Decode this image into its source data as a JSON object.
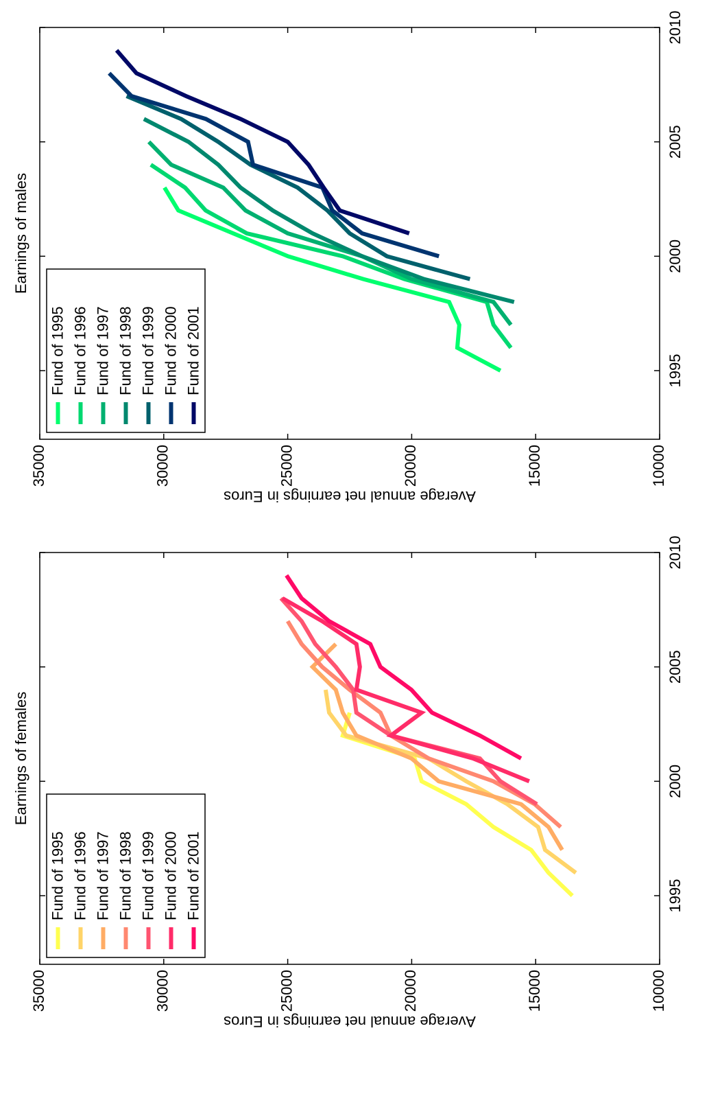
{
  "chart_data": [
    {
      "type": "line",
      "title": "Earnings of males",
      "y_label": "Average annual net earnings in Euros",
      "x": [
        1995,
        1996,
        1997,
        1998,
        1999,
        2000,
        2001,
        2002,
        2003,
        2004,
        2005,
        2006,
        2007,
        2008,
        2009
      ],
      "xlim": [
        1992,
        2010
      ],
      "xticks": [
        1995,
        2000,
        2005,
        2010
      ],
      "ylim": [
        10000,
        35000
      ],
      "yticks": [
        10000,
        15000,
        20000,
        25000,
        30000,
        35000
      ],
      "grid": false,
      "legend": "upper left",
      "series": [
        {
          "name": "Fund of 1995",
          "color": "#00ff6e",
          "values": [
            16420,
            18160,
            18080,
            18490,
            21950,
            24990,
            27200,
            29410,
            29970,
            null,
            null,
            null,
            null,
            null,
            null
          ]
        },
        {
          "name": "Fund of 1996",
          "color": "#00d870",
          "values": [
            null,
            16000,
            16700,
            16970,
            20290,
            22780,
            26650,
            28310,
            29140,
            30520,
            null,
            null,
            null,
            null,
            null
          ]
        },
        {
          "name": "Fund of 1997",
          "color": "#00b070",
          "values": [
            null,
            null,
            16000,
            16700,
            20000,
            22000,
            25000,
            26700,
            27600,
            29700,
            30600,
            null,
            null,
            null,
            null
          ]
        },
        {
          "name": "Fund of 1998",
          "color": "#00886e",
          "values": [
            null,
            null,
            null,
            15870,
            19500,
            22000,
            24000,
            25600,
            26900,
            27800,
            29000,
            30800,
            null,
            null,
            null
          ]
        },
        {
          "name": "Fund of 1999",
          "color": "#00606c",
          "values": [
            null,
            null,
            null,
            null,
            17650,
            21000,
            22500,
            23400,
            24600,
            26500,
            27800,
            29300,
            31500,
            null,
            null
          ]
        },
        {
          "name": "Fund of 2000",
          "color": "#003470",
          "values": [
            null,
            null,
            null,
            null,
            null,
            18900,
            22000,
            23200,
            23600,
            26400,
            26600,
            28300,
            31300,
            32200,
            null
          ]
        },
        {
          "name": "Fund of 2001",
          "color": "#000866",
          "values": [
            null,
            null,
            null,
            null,
            null,
            null,
            20100,
            22900,
            23550,
            24160,
            25000,
            26900,
            29100,
            31100,
            31900
          ]
        }
      ]
    },
    {
      "type": "line",
      "title": "Earnings of females",
      "y_label": "Average annual net earnings in Euros",
      "x": [
        1995,
        1996,
        1997,
        1998,
        1999,
        2000,
        2001,
        2002,
        2003,
        2004,
        2005,
        2006,
        2007,
        2008,
        2009
      ],
      "xlim": [
        1992,
        2010
      ],
      "xticks": [
        1995,
        2000,
        2005,
        2010
      ],
      "ylim": [
        10000,
        35000
      ],
      "yticks": [
        10000,
        15000,
        20000,
        25000,
        30000,
        35000
      ],
      "grid": false,
      "legend": "upper left",
      "series": [
        {
          "name": "Fund of 1995",
          "color": "#ffff50",
          "values": [
            13520,
            14480,
            15180,
            16700,
            17800,
            19600,
            19880,
            22780,
            22500,
            null,
            null,
            null,
            null,
            null,
            null
          ]
        },
        {
          "name": "Fund of 1996",
          "color": "#ffd468",
          "values": [
            null,
            13380,
            14620,
            14900,
            16140,
            17800,
            19320,
            22640,
            23330,
            23470,
            null,
            null,
            null,
            null,
            null
          ]
        },
        {
          "name": "Fund of 1997",
          "color": "#ffac64",
          "values": [
            null,
            null,
            13930,
            14480,
            15590,
            18910,
            20010,
            22230,
            22780,
            23060,
            24000,
            23060,
            null,
            null,
            null
          ]
        },
        {
          "name": "Fund of 1998",
          "color": "#ff8870",
          "values": [
            null,
            null,
            null,
            13990,
            15040,
            16700,
            19320,
            20840,
            21260,
            22500,
            23610,
            24440,
            25000,
            null,
            null
          ]
        },
        {
          "name": "Fund of 1999",
          "color": "#ff5470",
          "values": [
            null,
            null,
            null,
            null,
            14950,
            16420,
            17250,
            20840,
            22230,
            22360,
            23060,
            23890,
            24440,
            25270,
            null
          ]
        },
        {
          "name": "Fund of 2000",
          "color": "#ff2c68",
          "values": [
            null,
            null,
            null,
            null,
            null,
            15260,
            17530,
            20840,
            19600,
            22230,
            22090,
            22230,
            23610,
            25210,
            null
          ]
        },
        {
          "name": "Fund of 2001",
          "color": "#ff0a66",
          "values": [
            null,
            null,
            null,
            null,
            null,
            null,
            15590,
            17250,
            19180,
            20010,
            21260,
            21670,
            23330,
            24440,
            25050
          ]
        }
      ]
    }
  ]
}
